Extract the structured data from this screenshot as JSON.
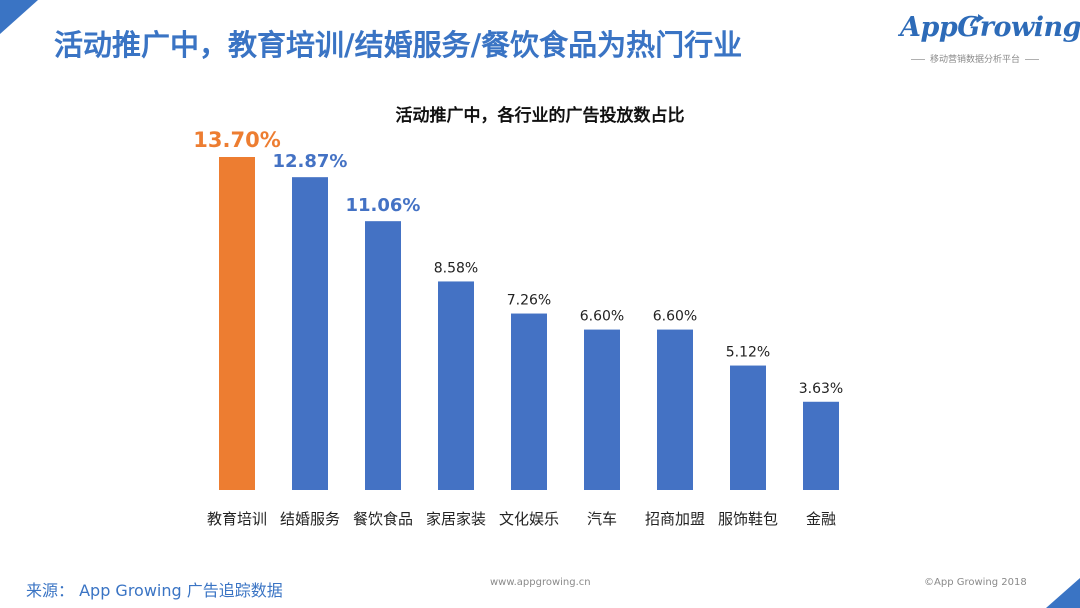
{
  "page": {
    "title": "活动推广中，教育培训/结婚服务/餐饮食品为热门行业"
  },
  "logo": {
    "name": "AppGrowing",
    "tagline": "移动营销数据分析平台"
  },
  "colors": {
    "accent": "#3a74c4",
    "bar_default": "#4472c4",
    "bar_highlight": "#ed7d31"
  },
  "chart_data": {
    "type": "bar",
    "title": "活动推广中，各行业的广告投放数占比",
    "categories": [
      "教育培训",
      "结婚服务",
      "餐饮食品",
      "家居家装",
      "文化娱乐",
      "汽车",
      "招商加盟",
      "服饰鞋包",
      "金融"
    ],
    "values": [
      13.7,
      12.87,
      11.06,
      8.58,
      7.26,
      6.6,
      6.6,
      5.12,
      3.63
    ],
    "labels": [
      "13.70%",
      "12.87%",
      "11.06%",
      "8.58%",
      "7.26%",
      "6.60%",
      "6.60%",
      "5.12%",
      "3.63%"
    ],
    "highlight_index": 0,
    "xlabel": "",
    "ylabel": "",
    "ylim": [
      0,
      13.7
    ],
    "grid": false,
    "legend": "none"
  },
  "footer": {
    "source": "来源： App Growing 广告追踪数据",
    "url": "www.appgrowing.cn",
    "copyright": "©App Growing 2018"
  }
}
